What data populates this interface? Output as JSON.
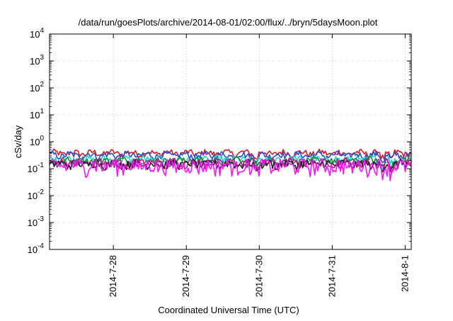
{
  "chart_data": {
    "type": "line",
    "title": "/data/run/goesPlots/archive/2014-08-01/02:00/flux/../bryn/5daysMoon.plot",
    "xlabel": "Coordinated Universal Time (UTC)",
    "ylabel": "cSv/day",
    "y_scale": "log",
    "ylim": [
      0.0001,
      10000
    ],
    "xlim": [
      "2014-07-27 03:00",
      "2014-08-01 02:00"
    ],
    "grid": true,
    "y_ticks": [
      {
        "value": 0.0001,
        "base": "10",
        "exp": "-4"
      },
      {
        "value": 0.001,
        "base": "10",
        "exp": "-3"
      },
      {
        "value": 0.01,
        "base": "10",
        "exp": "-2"
      },
      {
        "value": 0.1,
        "base": "10",
        "exp": "-1"
      },
      {
        "value": 1,
        "base": "10",
        "exp": "0"
      },
      {
        "value": 10,
        "base": "10",
        "exp": "1"
      },
      {
        "value": 100,
        "base": "10",
        "exp": "2"
      },
      {
        "value": 1000,
        "base": "10",
        "exp": "3"
      },
      {
        "value": 10000,
        "base": "10",
        "exp": "4"
      }
    ],
    "x_ticks": [
      {
        "value": "2014-07-28 00:00",
        "label": "2014-7-28"
      },
      {
        "value": "2014-07-29 00:00",
        "label": "2014-7-29"
      },
      {
        "value": "2014-07-30 00:00",
        "label": "2014-7-30"
      },
      {
        "value": "2014-07-31 00:00",
        "label": "2014-7-31"
      },
      {
        "value": "2014-08-01 00:00",
        "label": "2014-8-1"
      }
    ],
    "series": [
      {
        "color": "#e8131d",
        "level": 0.37,
        "amp": 0.11
      },
      {
        "color": "#1f4fe0",
        "level": 0.31,
        "amp": 0.1
      },
      {
        "color": "#19d6d6",
        "level": 0.21,
        "amp": 0.08
      },
      {
        "color": "#1a8a2a",
        "level": 0.19,
        "amp": 0.07
      },
      {
        "color": "#c01890",
        "level": 0.16,
        "amp": 0.07
      },
      {
        "color": "#222222",
        "level": 0.145,
        "amp": 0.06
      },
      {
        "color": "#ff10ff",
        "level": 0.125,
        "amp": 0.09
      }
    ]
  }
}
